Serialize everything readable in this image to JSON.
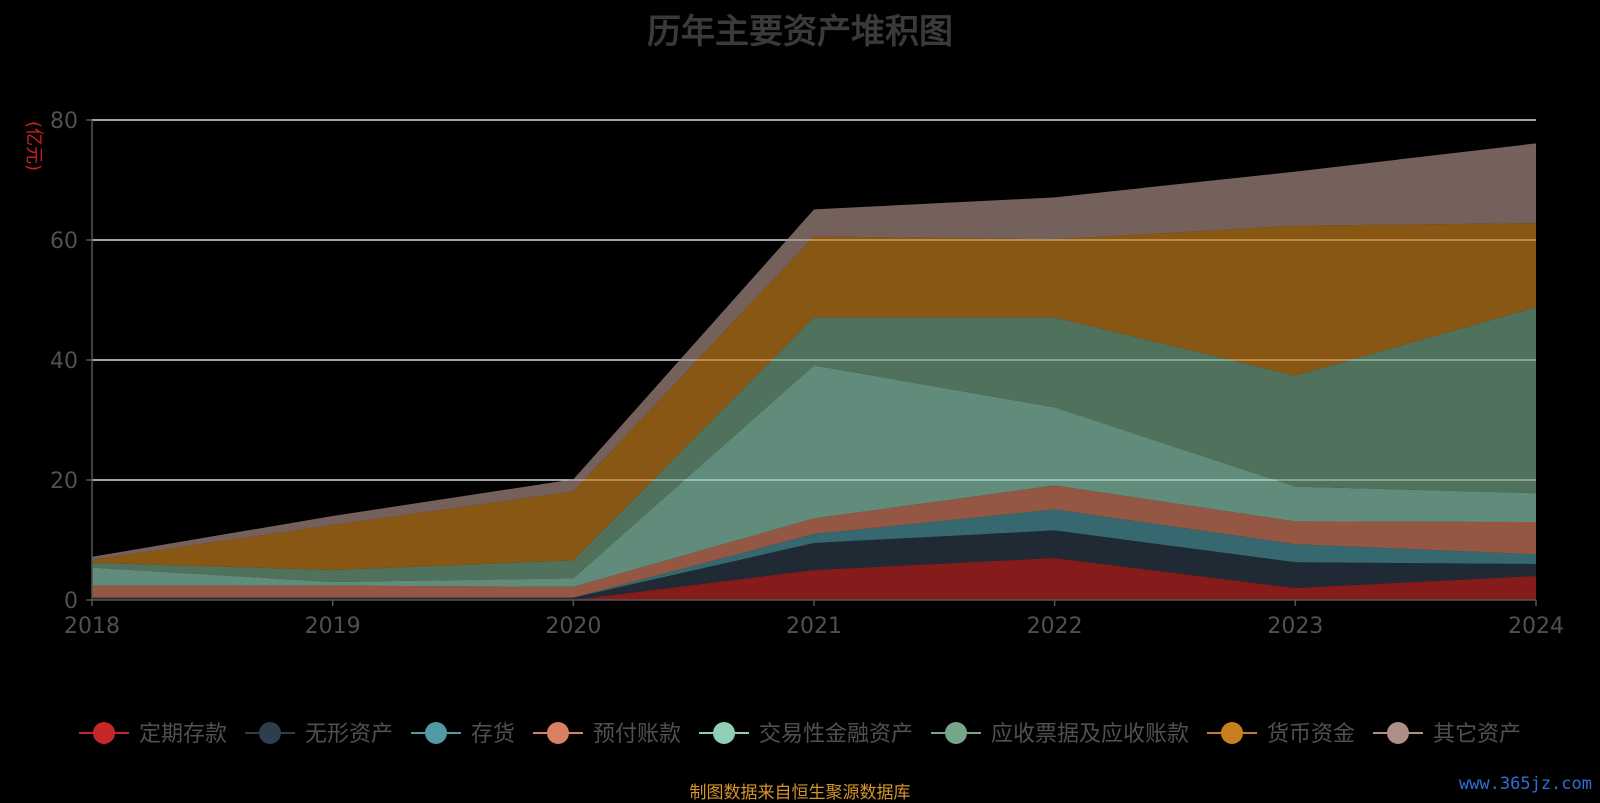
{
  "chart_data": {
    "type": "area",
    "stacked": true,
    "title": "历年主要资产堆积图",
    "ylabel": "(亿元)",
    "xlabel": "",
    "x": [
      "2018",
      "2019",
      "2020",
      "2021",
      "2022",
      "2023",
      "2024"
    ],
    "ylim": [
      0,
      80
    ],
    "yticks": [
      0,
      20,
      40,
      60,
      80
    ],
    "grid": true,
    "legend_position": "bottom",
    "series": [
      {
        "name": "定期存款",
        "color": "#c62828",
        "values": [
          0,
          0,
          0,
          5.0,
          7.0,
          2.0,
          4.0
        ]
      },
      {
        "name": "无形资产",
        "color": "#2e3e4e",
        "values": [
          0.4,
          0.4,
          0.4,
          4.5,
          4.6,
          4.3,
          2.0
        ]
      },
      {
        "name": "存货",
        "color": "#4f9aa3",
        "values": [
          0,
          0,
          0,
          1.5,
          3.5,
          3.0,
          1.6
        ]
      },
      {
        "name": "预付账款",
        "color": "#d98063",
        "values": [
          2.0,
          2.0,
          1.8,
          2.6,
          4.0,
          3.8,
          5.4
        ]
      },
      {
        "name": "交易性金融资产",
        "color": "#8fcfb6",
        "values": [
          3.0,
          0.6,
          1.4,
          25.5,
          13.0,
          5.8,
          4.8
        ]
      },
      {
        "name": "应收票据及应收账款",
        "color": "#76a688",
        "values": [
          0.8,
          2.0,
          3.0,
          8.0,
          15.0,
          18.5,
          31.0
        ]
      },
      {
        "name": "货币资金",
        "color": "#c8801e",
        "values": [
          0.5,
          7.5,
          11.5,
          13.5,
          13.0,
          25.0,
          14.0
        ]
      },
      {
        "name": "其它资产",
        "color": "#ad8f87",
        "values": [
          0.5,
          1.5,
          2.0,
          4.5,
          7.0,
          9.0,
          13.3
        ]
      }
    ]
  },
  "footer": {
    "source": "制图数据来自恒生聚源数据库",
    "watermark": "www.365jz.com"
  }
}
